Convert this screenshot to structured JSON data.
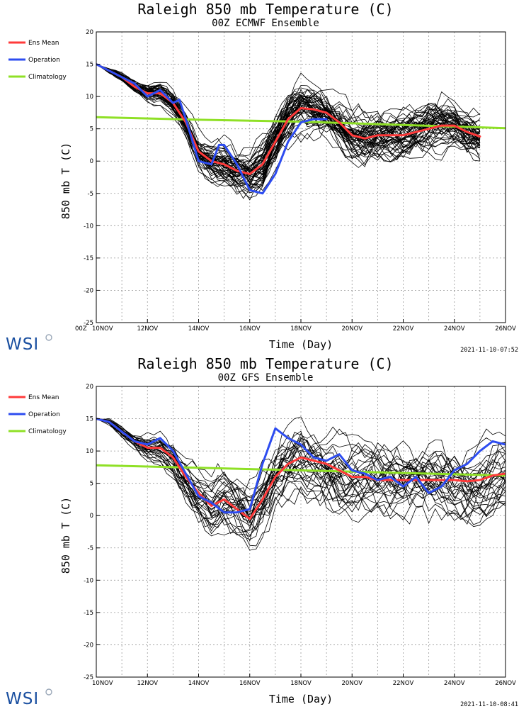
{
  "colors": {
    "ens_mean": "#ff3a3a",
    "operation": "#2d4cf0",
    "climatology": "#8fe026",
    "members": "#000000",
    "grid": "#9a9a9a",
    "logo": "#1a4fa0"
  },
  "logo_text": "WSI",
  "chart_data": [
    {
      "type": "line",
      "title": "Raleigh 850 mb Temperature (C)",
      "subtitle": "00Z ECMWF Ensemble",
      "xlabel": "Time (Day)",
      "ylabel": "850 mb T (C)",
      "xlim": [
        10,
        26
      ],
      "ylim": [
        -25,
        20
      ],
      "grid": true,
      "legend_position": "left",
      "timestamp": "2021-11-10-07:52",
      "x_start_label": "00Z",
      "x_tick_labels": [
        {
          "x": 10,
          "label": "10NOV"
        },
        {
          "x": 12,
          "label": "12NOV"
        },
        {
          "x": 14,
          "label": "14NOV"
        },
        {
          "x": 16,
          "label": "16NOV"
        },
        {
          "x": 18,
          "label": "18NOV"
        },
        {
          "x": 20,
          "label": "20NOV"
        },
        {
          "x": 22,
          "label": "22NOV"
        },
        {
          "x": 24,
          "label": "24NOV"
        },
        {
          "x": 26,
          "label": "26NOV"
        }
      ],
      "y_ticks": [
        -25,
        -20,
        -15,
        -10,
        -5,
        0,
        5,
        10,
        15,
        20
      ],
      "ensemble": {
        "members": 51,
        "seed": 7,
        "end_day": 25
      },
      "series": [
        {
          "name": "Ens Mean",
          "color": "#ff3a3a",
          "x": [
            10,
            10.5,
            11,
            11.5,
            12,
            12.5,
            13,
            13.5,
            14,
            14.5,
            15,
            15.5,
            16,
            16.5,
            17,
            17.5,
            18,
            18.5,
            19,
            19.5,
            20,
            20.5,
            21,
            21.5,
            22,
            22.5,
            23,
            23.5,
            24,
            24.5,
            25
          ],
          "y": [
            15,
            14,
            13,
            11.5,
            10.5,
            10.5,
            9,
            6,
            1.5,
            0,
            -0.5,
            -1.5,
            -2,
            -0.5,
            3,
            6.5,
            8.2,
            8,
            7.5,
            6,
            4,
            3.5,
            4,
            4,
            4,
            4.5,
            5,
            5.5,
            5.5,
            4.5,
            3.8
          ]
        },
        {
          "name": "Operation",
          "color": "#2d4cf0",
          "x": [
            10,
            10.5,
            11,
            11.5,
            12,
            12.5,
            13,
            13.25,
            13.5,
            14,
            14.5,
            14.8,
            15,
            15.5,
            16,
            16.5,
            17,
            17.5,
            18,
            18.5,
            19
          ],
          "y": [
            15,
            14,
            13,
            12,
            10,
            11,
            9,
            9.5,
            6.5,
            0,
            -0.5,
            2.5,
            2.5,
            -0.5,
            -4.5,
            -5,
            -2,
            3,
            6,
            6.5,
            6.5
          ]
        },
        {
          "name": "Climatology",
          "color": "#8fe026",
          "x": [
            10,
            14,
            18,
            22,
            26
          ],
          "y": [
            6.8,
            6.4,
            6.1,
            5.6,
            5.1
          ]
        }
      ]
    },
    {
      "type": "line",
      "title": "Raleigh 850 mb Temperature (C)",
      "subtitle": "00Z GFS Ensemble",
      "xlabel": "Time (Day)",
      "ylabel": "850 mb T (C)",
      "xlim": [
        10,
        26
      ],
      "ylim": [
        -25,
        20
      ],
      "grid": true,
      "legend_position": "left",
      "timestamp": "2021-11-10-08:41",
      "x_start_label": "",
      "x_tick_labels": [
        {
          "x": 10,
          "label": "10NOV"
        },
        {
          "x": 12,
          "label": "12NOV"
        },
        {
          "x": 14,
          "label": "14NOV"
        },
        {
          "x": 16,
          "label": "16NOV"
        },
        {
          "x": 18,
          "label": "18NOV"
        },
        {
          "x": 20,
          "label": "20NOV"
        },
        {
          "x": 22,
          "label": "22NOV"
        },
        {
          "x": 24,
          "label": "24NOV"
        },
        {
          "x": 26,
          "label": "26NOV"
        }
      ],
      "y_ticks": [
        -25,
        -20,
        -15,
        -10,
        -5,
        0,
        5,
        10,
        15,
        20
      ],
      "ensemble": {
        "members": 31,
        "seed": 19,
        "end_day": 26
      },
      "series": [
        {
          "name": "Ens Mean",
          "color": "#ff3a3a",
          "x": [
            10,
            10.5,
            11,
            11.5,
            12,
            12.5,
            13,
            13.5,
            14,
            14.5,
            15,
            15.5,
            16,
            16.5,
            17,
            17.5,
            18,
            18.5,
            19,
            19.5,
            20,
            20.5,
            21,
            21.5,
            22,
            22.5,
            23,
            23.5,
            24,
            24.5,
            25,
            25.5,
            26
          ],
          "y": [
            15,
            14.5,
            13,
            11.5,
            10.5,
            10.5,
            9,
            6,
            3.5,
            1.5,
            2.5,
            1,
            -0.5,
            2.5,
            6,
            8,
            9,
            8.5,
            8,
            7,
            6,
            6,
            5.5,
            5.5,
            5.5,
            5.5,
            5.5,
            5.5,
            5.5,
            5.3,
            5.5,
            6.2,
            6.5
          ]
        },
        {
          "name": "Operation",
          "color": "#2d4cf0",
          "x": [
            10,
            10.5,
            11,
            11.5,
            12,
            12.5,
            13,
            13.5,
            14,
            14.5,
            15,
            15.5,
            16,
            16.5,
            17,
            17.5,
            18,
            18.5,
            19,
            19.5,
            20,
            20.5,
            21,
            21.5,
            22,
            22.5,
            23,
            23.5,
            24,
            24.5,
            25,
            25.5,
            26
          ],
          "y": [
            15,
            14.5,
            13,
            11.5,
            11,
            12,
            10,
            6.5,
            3,
            2,
            0.5,
            0.5,
            1,
            8,
            13.5,
            12,
            11,
            9,
            8.5,
            9.5,
            7,
            6.5,
            5.5,
            6,
            4.5,
            6,
            3.5,
            4.5,
            7,
            8,
            10,
            11.5,
            11
          ]
        },
        {
          "name": "Climatology",
          "color": "#8fe026",
          "x": [
            10,
            14,
            18,
            22,
            26
          ],
          "y": [
            7.8,
            7.4,
            7.0,
            6.6,
            6.2
          ]
        }
      ]
    }
  ]
}
